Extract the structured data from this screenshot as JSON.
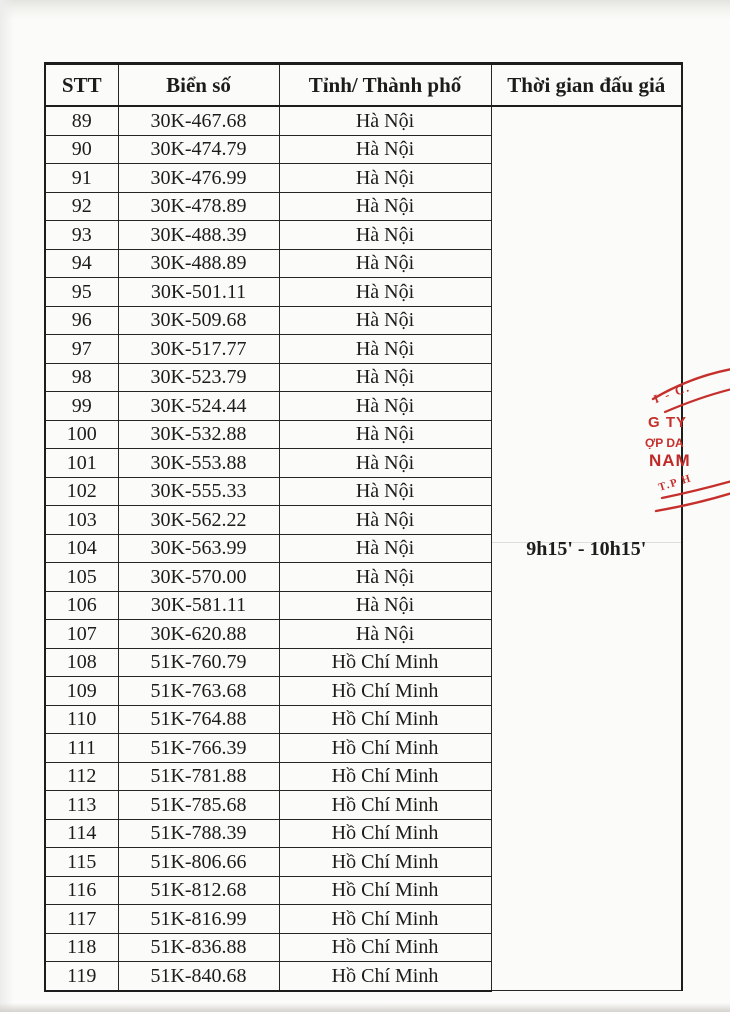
{
  "table": {
    "headers": {
      "stt": "STT",
      "plate": "Biển số",
      "city": "Tỉnh/ Thành phố",
      "time": "Thời gian đấu giá"
    },
    "auction_time": "9h15' - 10h15'",
    "rows": [
      {
        "stt": "89",
        "plate": "30K-467.68",
        "city": "Hà Nội"
      },
      {
        "stt": "90",
        "plate": "30K-474.79",
        "city": "Hà Nội"
      },
      {
        "stt": "91",
        "plate": "30K-476.99",
        "city": "Hà Nội"
      },
      {
        "stt": "92",
        "plate": "30K-478.89",
        "city": "Hà Nội"
      },
      {
        "stt": "93",
        "plate": "30K-488.39",
        "city": "Hà Nội"
      },
      {
        "stt": "94",
        "plate": "30K-488.89",
        "city": "Hà Nội"
      },
      {
        "stt": "95",
        "plate": "30K-501.11",
        "city": "Hà Nội"
      },
      {
        "stt": "96",
        "plate": "30K-509.68",
        "city": "Hà Nội"
      },
      {
        "stt": "97",
        "plate": "30K-517.77",
        "city": "Hà Nội"
      },
      {
        "stt": "98",
        "plate": "30K-523.79",
        "city": "Hà Nội"
      },
      {
        "stt": "99",
        "plate": "30K-524.44",
        "city": "Hà Nội"
      },
      {
        "stt": "100",
        "plate": "30K-532.88",
        "city": "Hà Nội"
      },
      {
        "stt": "101",
        "plate": "30K-553.88",
        "city": "Hà Nội"
      },
      {
        "stt": "102",
        "plate": "30K-555.33",
        "city": "Hà Nội"
      },
      {
        "stt": "103",
        "plate": "30K-562.22",
        "city": "Hà Nội"
      },
      {
        "stt": "104",
        "plate": "30K-563.99",
        "city": "Hà Nội"
      },
      {
        "stt": "105",
        "plate": "30K-570.00",
        "city": "Hà Nội"
      },
      {
        "stt": "106",
        "plate": "30K-581.11",
        "city": "Hà Nội"
      },
      {
        "stt": "107",
        "plate": "30K-620.88",
        "city": "Hà Nội"
      },
      {
        "stt": "108",
        "plate": "51K-760.79",
        "city": "Hồ Chí Minh"
      },
      {
        "stt": "109",
        "plate": "51K-763.68",
        "city": "Hồ Chí Minh"
      },
      {
        "stt": "110",
        "plate": "51K-764.88",
        "city": "Hồ Chí Minh"
      },
      {
        "stt": "111",
        "plate": "51K-766.39",
        "city": "Hồ Chí Minh"
      },
      {
        "stt": "112",
        "plate": "51K-781.88",
        "city": "Hồ Chí Minh"
      },
      {
        "stt": "113",
        "plate": "51K-785.68",
        "city": "Hồ Chí Minh"
      },
      {
        "stt": "114",
        "plate": "51K-788.39",
        "city": "Hồ Chí Minh"
      },
      {
        "stt": "115",
        "plate": "51K-806.66",
        "city": "Hồ Chí Minh"
      },
      {
        "stt": "116",
        "plate": "51K-812.68",
        "city": "Hồ Chí Minh"
      },
      {
        "stt": "117",
        "plate": "51K-816.99",
        "city": "Hồ Chí Minh"
      },
      {
        "stt": "118",
        "plate": "51K-836.88",
        "city": "Hồ Chí Minh"
      },
      {
        "stt": "119",
        "plate": "51K-840.68",
        "city": "Hồ Chí Minh"
      }
    ]
  },
  "stamp": {
    "color": "#c5302c",
    "arc_text_top": "I - C.",
    "line1": "G TY",
    "line2": "ỢP DA",
    "line3": "NAM",
    "arc_text_bottom": "T.P H"
  }
}
